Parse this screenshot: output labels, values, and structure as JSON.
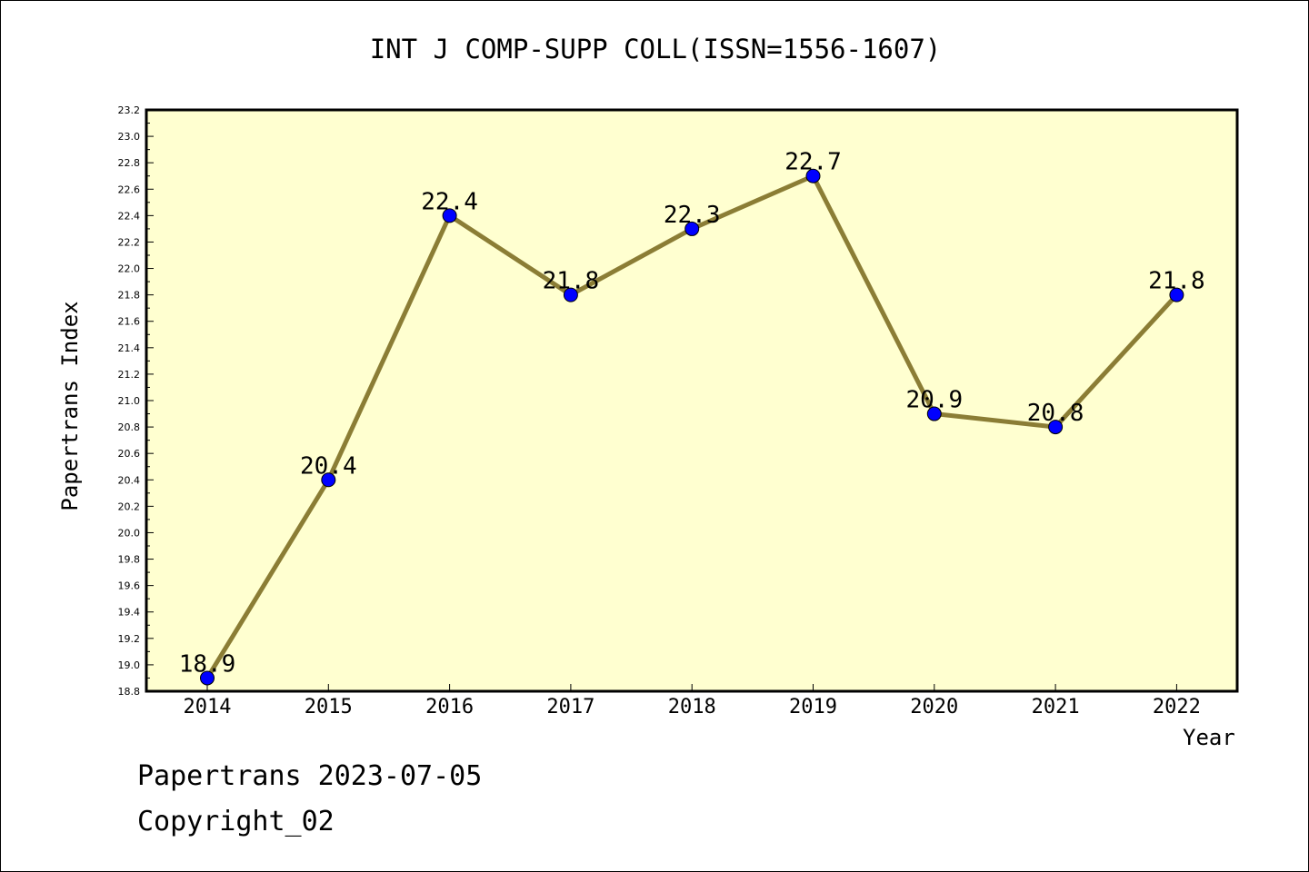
{
  "title": "INT J COMP-SUPP COLL(ISSN=1556-1607)",
  "footer": {
    "line1": "Papertrans 2023-07-05",
    "line2": "Copyright_02"
  },
  "colors": {
    "plot_background": "#FFFFD0",
    "line": "#8B7D35",
    "marker": "#0000FF",
    "axis": "#000000"
  },
  "chart_data": {
    "type": "line",
    "title": "INT J COMP-SUPP COLL(ISSN=1556-1607)",
    "xlabel": "Year",
    "ylabel": "Papertrans Index",
    "categories": [
      "2014",
      "2015",
      "2016",
      "2017",
      "2018",
      "2019",
      "2020",
      "2021",
      "2022"
    ],
    "series": [
      {
        "values": [
          18.9,
          20.4,
          22.4,
          21.8,
          22.3,
          22.7,
          20.9,
          20.8,
          21.8
        ]
      }
    ],
    "data_labels": [
      "18.9",
      "20.4",
      "22.4",
      "21.8",
      "22.3",
      "22.7",
      "20.9",
      "20.8",
      "21.8"
    ],
    "ylim": [
      18.8,
      23.2
    ],
    "yticks": [
      "18.8",
      "19.0",
      "19.2",
      "19.4",
      "19.6",
      "19.8",
      "20.0",
      "20.2",
      "20.4",
      "20.6",
      "20.8",
      "21.0",
      "21.2",
      "21.4",
      "21.6",
      "21.8",
      "22.0",
      "22.2",
      "22.4",
      "22.6",
      "22.8",
      "23.0",
      "23.2"
    ],
    "grid": false,
    "legend": "none"
  }
}
